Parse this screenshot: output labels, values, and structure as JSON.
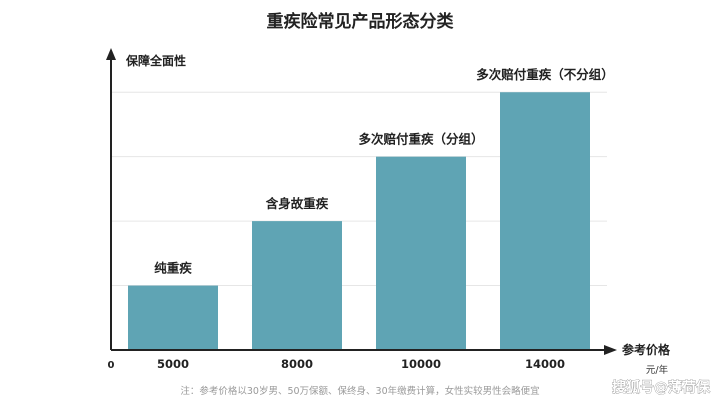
{
  "chart_data": {
    "type": "bar",
    "title": "重疾险常见产品形态分类",
    "ylabel": "保障全面性",
    "xlabel": "参考价格",
    "x_unit": "元/年",
    "origin_label": "0",
    "categories": [
      "5000",
      "8000",
      "10000",
      "14000"
    ],
    "bar_labels": [
      "纯重疾",
      "含身故重疾",
      "多次赔付重疾（分组）",
      "多次赔付重疾（不分组）"
    ],
    "values": [
      1,
      2,
      3,
      4
    ],
    "ylim": [
      0,
      4.5
    ],
    "grid": true,
    "bar_color": "#5fa4b4",
    "axis_color": "#222222",
    "grid_color": "#e6e6e6",
    "note": "注：参考价格以30岁男、50万保额、保终身、30年缴费计算，女性实较男性会略便宜",
    "watermark": "搜狐号@薄荷保"
  }
}
